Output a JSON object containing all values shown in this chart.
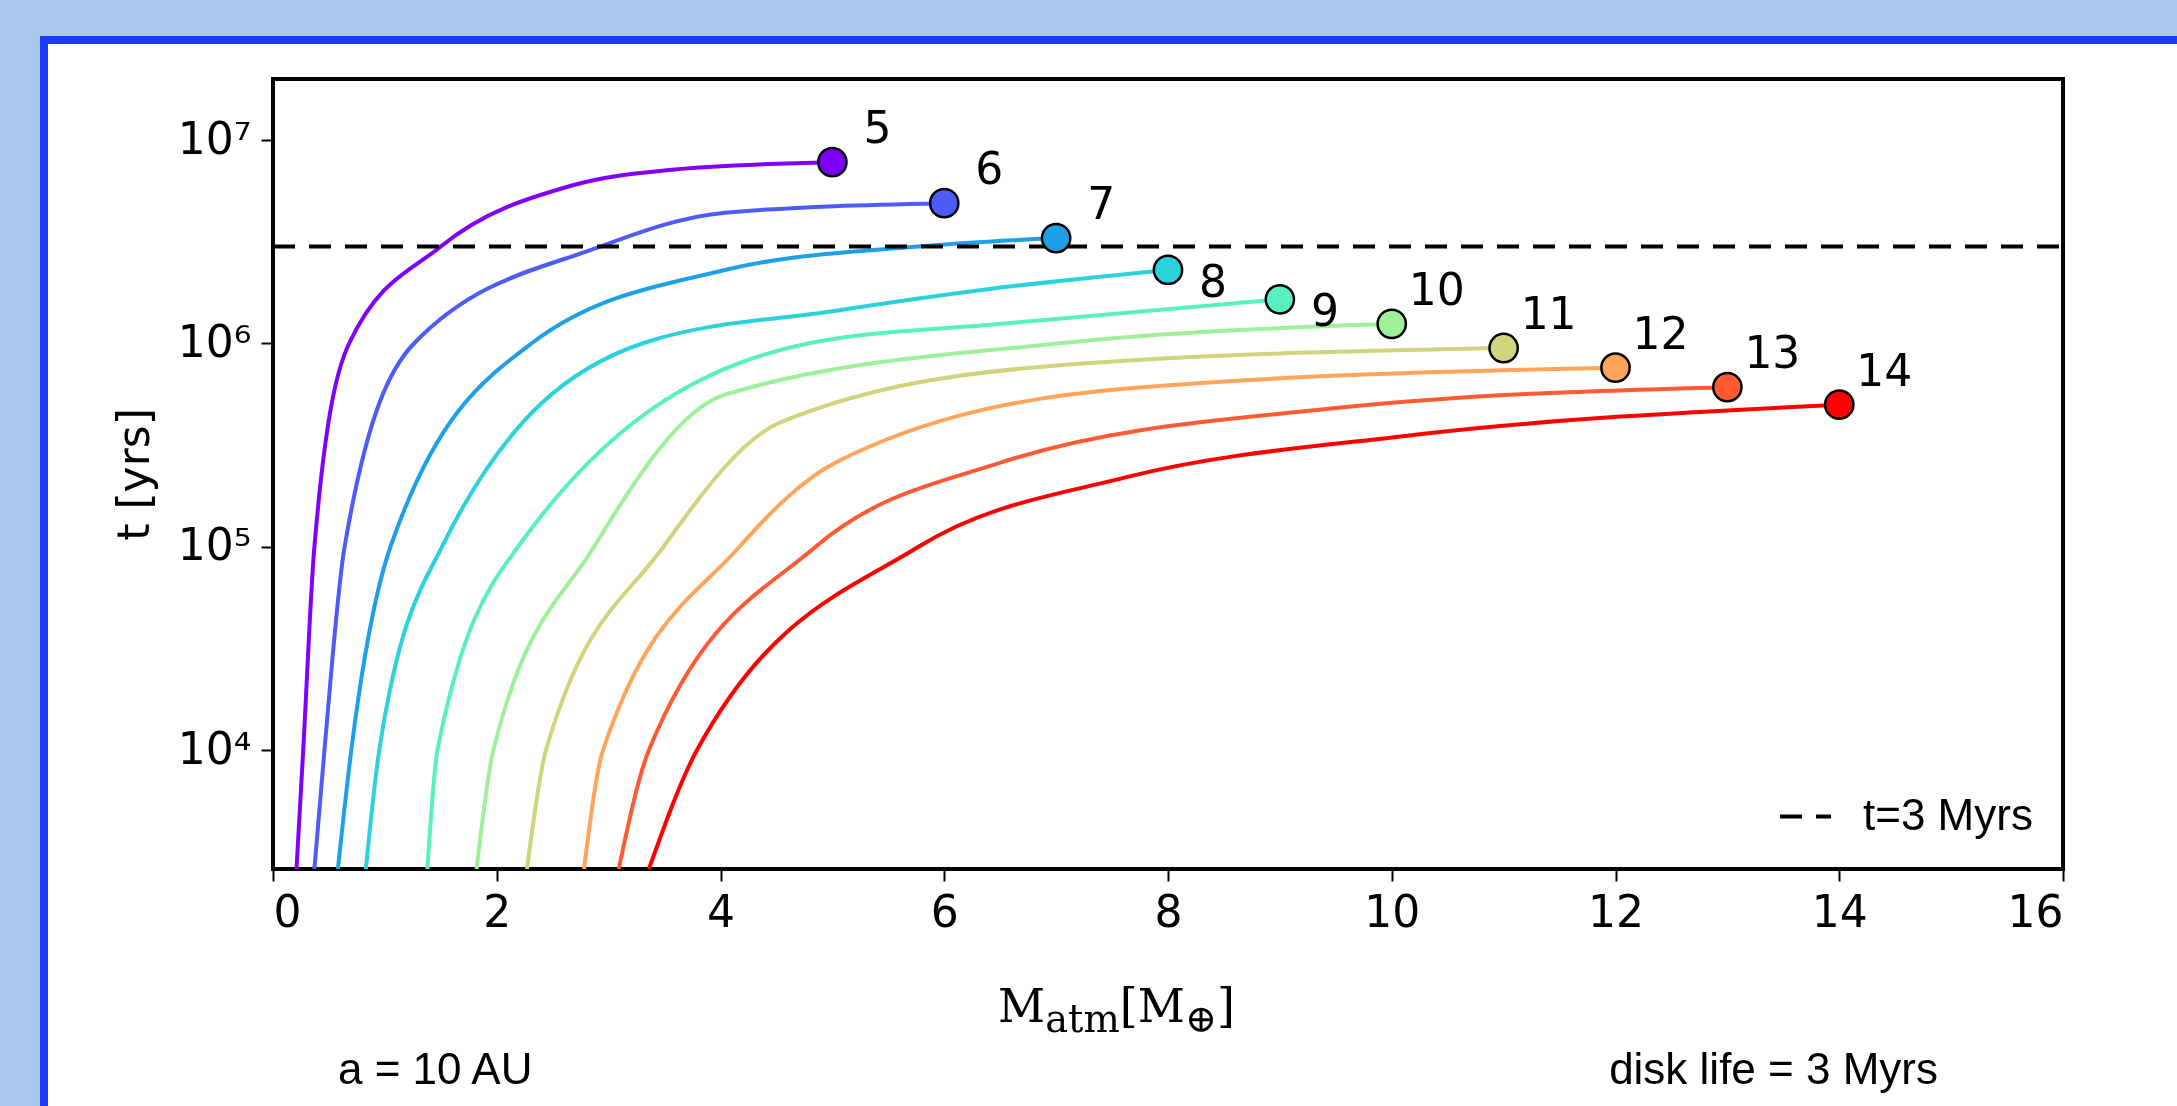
{
  "chart_data": {
    "type": "line",
    "xlabel": "M$_{atm}$[M$_{⊕}$]",
    "ylabel": "t [yrs]",
    "log": "y",
    "grid": false,
    "legend": "bottom right",
    "marker": "none",
    "line_style": "solid",
    "xlim": [
      0,
      16
    ],
    "xticks": [
      0,
      2,
      4,
      6,
      8,
      10,
      12,
      14,
      16
    ],
    "ylim": [
      2600,
      20000000
    ],
    "yticks": [
      {
        "value": 10000,
        "label": "10⁴"
      },
      {
        "value": 100000,
        "label": "10⁵"
      },
      {
        "value": 1000000,
        "label": "10⁶"
      },
      {
        "value": 10000000,
        "label": "10⁷"
      }
    ],
    "series": [
      {
        "name": "5",
        "color": "#8000ff",
        "x": [
          0.21,
          0.27,
          0.37,
          0.68,
          1.5,
          2.68,
          3.5,
          5
        ],
        "values": [
          2600,
          10000,
          100000,
          1000000,
          3000000,
          6000000,
          7100000,
          7800000
        ]
      },
      {
        "name": "6",
        "color": "#4c5cf7",
        "x": [
          0.37,
          0.46,
          0.64,
          1.26,
          2.93,
          4.04,
          6
        ],
        "values": [
          2600,
          10000,
          100000,
          1000000,
          3000000,
          4400000,
          4900000
        ]
      },
      {
        "name": "7",
        "color": "#1ea0e8",
        "x": [
          0.58,
          0.7,
          1.05,
          2.31,
          4.04,
          5.77,
          7
        ],
        "values": [
          2600,
          10000,
          100000,
          1000000,
          2300000,
          3000000,
          3300000
        ]
      },
      {
        "name": "8",
        "color": "#2ad2dc",
        "x": [
          0.83,
          0.95,
          1.51,
          3.3,
          5.03,
          6.39,
          8
        ],
        "values": [
          2600,
          10000,
          100000,
          1000000,
          1450000,
          1850000,
          2300000
        ]
      },
      {
        "name": "9",
        "color": "#58f0c0",
        "x": [
          1.38,
          1.47,
          2.19,
          4.78,
          6.51,
          9
        ],
        "values": [
          2600,
          10000,
          100000,
          1000000,
          1250000,
          1650000
        ]
      },
      {
        "name": "10",
        "color": "#9ef09a",
        "x": [
          1.82,
          1.97,
          2.87,
          4.04,
          7.01,
          10
        ],
        "values": [
          2600,
          10000,
          100000,
          560000,
          1000000,
          1250000
        ]
      },
      {
        "name": "11",
        "color": "#d0d47c",
        "x": [
          2.27,
          2.44,
          3.49,
          4.54,
          7.01,
          11
        ],
        "values": [
          2600,
          10000,
          100000,
          410000,
          780000,
          950000
        ]
      },
      {
        "name": "12",
        "color": "#ffa55a",
        "x": [
          2.78,
          2.95,
          4.17,
          5.03,
          7.63,
          12
        ],
        "values": [
          2600,
          10000,
          100000,
          260000,
          600000,
          760000
        ]
      },
      {
        "name": "13",
        "color": "#ff5a33",
        "x": [
          3.09,
          3.36,
          4.85,
          6.51,
          9.48,
          13
        ],
        "values": [
          2600,
          10000,
          100000,
          260000,
          480000,
          610000
        ]
      },
      {
        "name": "14",
        "color": "#ff0000",
        "x": [
          3.36,
          3.79,
          5.77,
          7.63,
          10.1,
          14
        ],
        "values": [
          2600,
          10000,
          100000,
          220000,
          350000,
          500000
        ]
      },
      {
        "type": "scatter",
        "marker": "circle",
        "colors": [
          "#8000ff",
          "#4c5cf7",
          "#1ea0e8",
          "#2ad2dc",
          "#58f0c0",
          "#9ef09a",
          "#d0d47c",
          "#ffa55a",
          "#ff5a33",
          "#ff0000"
        ],
        "x": [
          5,
          6,
          7,
          8,
          9,
          10,
          11,
          12,
          13,
          14
        ],
        "values": [
          7800000,
          4900000,
          3300000,
          2300000,
          1650000,
          1250000,
          950000,
          760000,
          610000,
          500000
        ]
      },
      {
        "name": "t=3 Myrs",
        "color": "#000000",
        "line_style": "dashed",
        "x": [
          0,
          16
        ],
        "values": [
          3000000,
          3000000
        ]
      }
    ],
    "annotations": [
      "a = 10 AU",
      "disk life = 3 Myrs"
    ]
  }
}
